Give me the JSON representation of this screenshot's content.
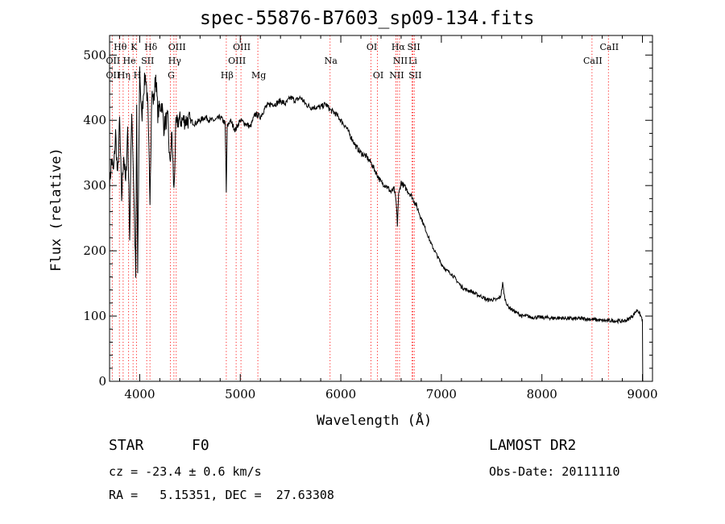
{
  "chart_data": {
    "type": "line",
    "title": "spec-55876-B7603_sp09-134.fits",
    "xlabel": "Wavelength (Å)",
    "ylabel": "Flux (relative)",
    "xlim": [
      3700,
      9100
    ],
    "ylim": [
      0,
      530
    ],
    "xticks": [
      "4000",
      "5000",
      "6000",
      "7000",
      "8000",
      "9000"
    ],
    "yticks": [
      "0",
      "100",
      "200",
      "300",
      "400",
      "500"
    ],
    "grid": false,
    "series": [
      {
        "x": [
          3700,
          3720,
          3740,
          3760,
          3780,
          3800,
          3820,
          3840,
          3860,
          3880,
          3900,
          3920,
          3940,
          3960,
          3970,
          3980,
          4000,
          4020,
          4040,
          4060,
          4080,
          4102,
          4120,
          4140,
          4160,
          4180,
          4200,
          4220,
          4240,
          4260,
          4280,
          4300,
          4320,
          4340,
          4360,
          4380,
          4400,
          4450,
          4500,
          4550,
          4600,
          4650,
          4700,
          4750,
          4800,
          4850,
          4861,
          4870,
          4900,
          4950,
          5000,
          5050,
          5100,
          5150,
          5200,
          5250,
          5300,
          5350,
          5400,
          5450,
          5500,
          5550,
          5600,
          5650,
          5700,
          5750,
          5800,
          5850,
          5900,
          5950,
          6000,
          6050,
          6100,
          6150,
          6200,
          6250,
          6300,
          6350,
          6400,
          6450,
          6500,
          6530,
          6550,
          6563,
          6575,
          6600,
          6650,
          6700,
          6750,
          6800,
          6850,
          6900,
          6950,
          7000,
          7050,
          7100,
          7150,
          7200,
          7250,
          7300,
          7350,
          7400,
          7450,
          7500,
          7550,
          7590,
          7610,
          7630,
          7660,
          7700,
          7750,
          7800,
          7850,
          7900,
          8000,
          8100,
          8200,
          8300,
          8400,
          8500,
          8550,
          8600,
          8700,
          8800,
          8850,
          8900,
          8950,
          9000
        ],
        "y": [
          300,
          340,
          320,
          380,
          310,
          400,
          280,
          350,
          300,
          390,
          220,
          420,
          300,
          160,
          420,
          160,
          480,
          400,
          450,
          470,
          420,
          285,
          440,
          430,
          470,
          410,
          420,
          425,
          390,
          400,
          400,
          330,
          380,
          290,
          390,
          400,
          400,
          400,
          400,
          395,
          400,
          405,
          400,
          400,
          405,
          395,
          290,
          390,
          400,
          385,
          400,
          395,
          390,
          410,
          405,
          420,
          425,
          425,
          430,
          425,
          435,
          430,
          435,
          425,
          420,
          420,
          420,
          425,
          415,
          410,
          400,
          390,
          375,
          360,
          350,
          345,
          335,
          320,
          305,
          300,
          290,
          295,
          275,
          240,
          285,
          305,
          295,
          285,
          270,
          250,
          230,
          210,
          195,
          180,
          170,
          165,
          155,
          145,
          140,
          138,
          133,
          130,
          125,
          125,
          125,
          130,
          150,
          128,
          115,
          110,
          105,
          100,
          100,
          98,
          98,
          97,
          97,
          96,
          96,
          95,
          94,
          93,
          93,
          92,
          94,
          100,
          110,
          95
        ]
      }
    ],
    "lines": [
      {
        "name": "Hθ",
        "x": 3798,
        "row": 1
      },
      {
        "name": "K",
        "x": 3934,
        "row": 1
      },
      {
        "name": "Hδ",
        "x": 4102,
        "row": 1
      },
      {
        "name": "OIII",
        "x": 4363,
        "row": 1
      },
      {
        "name": "OIII",
        "x": 5007,
        "row": 1
      },
      {
        "name": "OI",
        "x": 6300,
        "row": 1
      },
      {
        "name": "Hα",
        "x": 6563,
        "row": 1
      },
      {
        "name": "SII",
        "x": 6717,
        "row": 1
      },
      {
        "name": "CaII",
        "x": 8662,
        "row": 1
      },
      {
        "name": "OII",
        "x": 3727,
        "row": 2
      },
      {
        "name": "He",
        "x": 3889,
        "row": 2
      },
      {
        "name": "SII",
        "x": 4070,
        "row": 2
      },
      {
        "name": "Hγ",
        "x": 4340,
        "row": 2
      },
      {
        "name": "OIII",
        "x": 4959,
        "row": 2
      },
      {
        "name": "Na",
        "x": 5893,
        "row": 2
      },
      {
        "name": "NII",
        "x": 6584,
        "row": 2
      },
      {
        "name": "Li",
        "x": 6708,
        "row": 2
      },
      {
        "name": "CaII",
        "x": 8498,
        "row": 2
      },
      {
        "name": "OII",
        "x": 3727,
        "row": 3
      },
      {
        "name": "Hη",
        "x": 3835,
        "row": 3
      },
      {
        "name": "H",
        "x": 3968,
        "row": 3
      },
      {
        "name": "G",
        "x": 4305,
        "row": 3
      },
      {
        "name": "Hβ",
        "x": 4861,
        "row": 3
      },
      {
        "name": "Mg",
        "x": 5175,
        "row": 3
      },
      {
        "name": "OI",
        "x": 6364,
        "row": 3
      },
      {
        "name": "NII",
        "x": 6548,
        "row": 3
      },
      {
        "name": "SII",
        "x": 6731,
        "row": 3
      }
    ]
  },
  "info": {
    "object_class": "STAR",
    "subclass": "F0",
    "survey": "LAMOST DR2",
    "cz": "cz = -23.4 ± 0.6 km/s",
    "obs_date": "Obs-Date: 20111110",
    "coords": "RA =   5.15351, DEC =  27.63308"
  },
  "colors": {
    "spectrum": "#000000",
    "line_marker": "#ff2020",
    "axes": "#000000"
  }
}
